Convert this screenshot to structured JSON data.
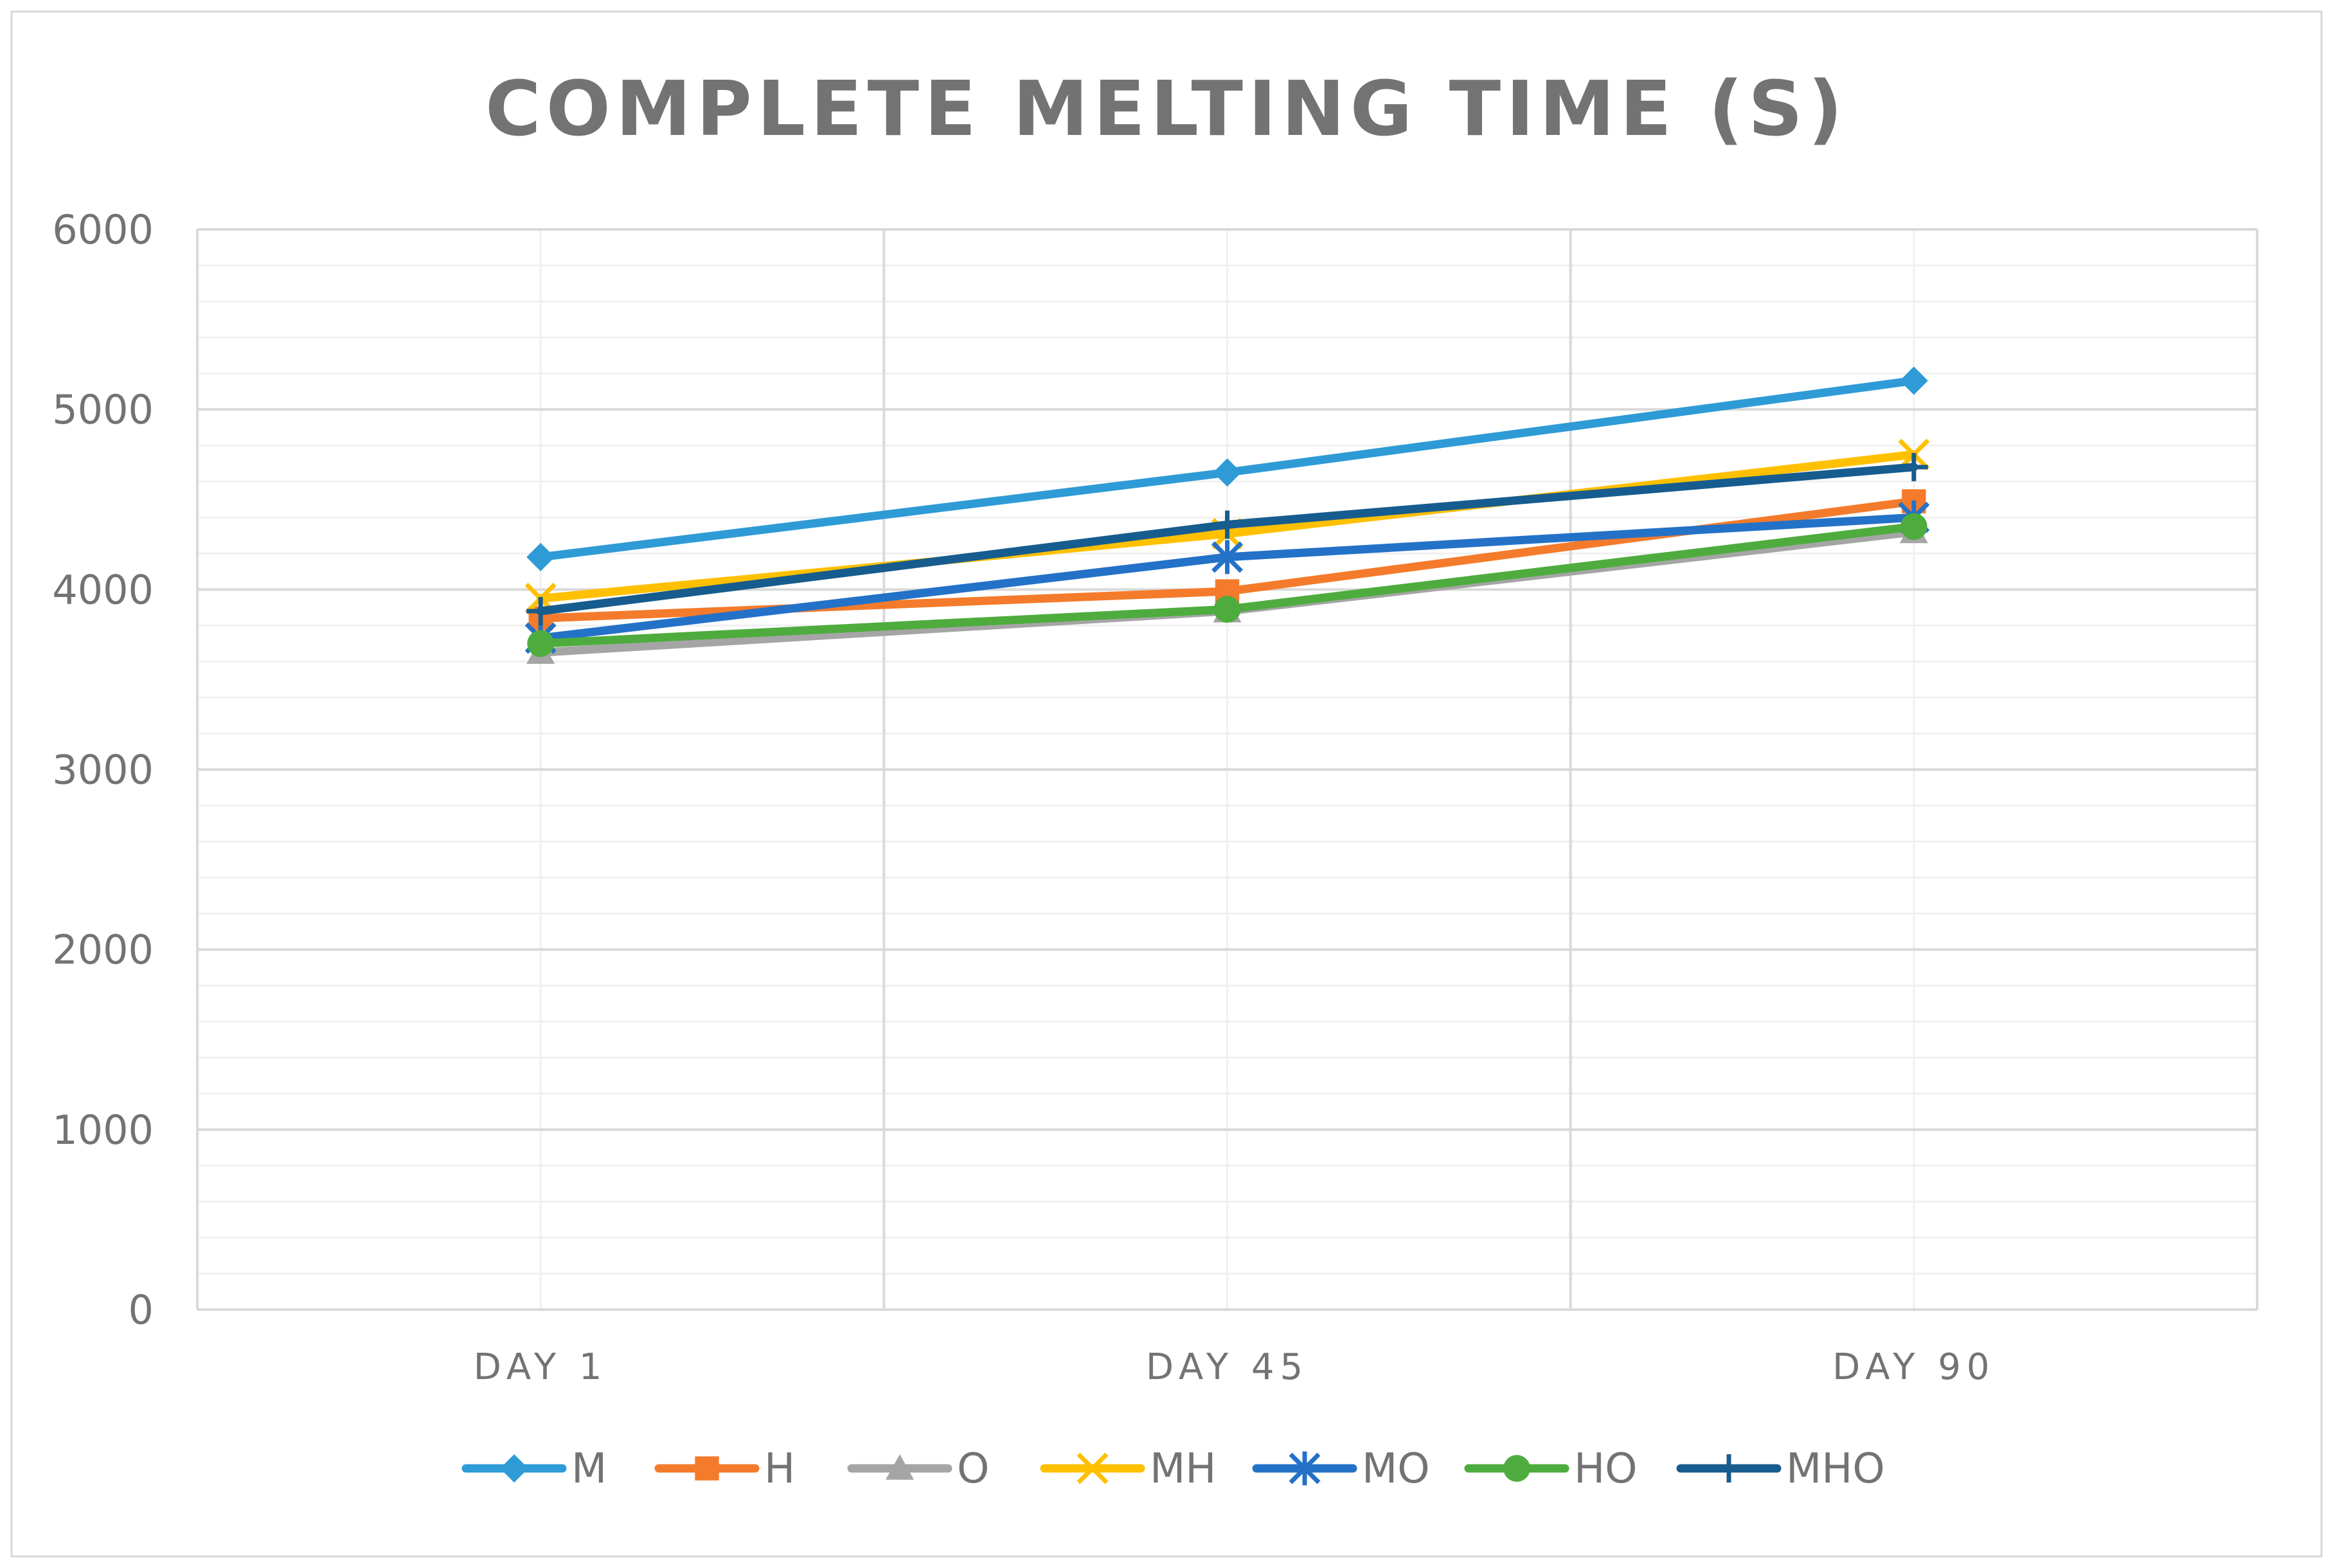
{
  "chart_data": {
    "type": "line",
    "title": "COMPLETE MELTING TIME (S)",
    "categories": [
      "DAY 1",
      "DAY 45",
      "DAY 90"
    ],
    "ylim": [
      0,
      6000
    ],
    "yticks": [
      0,
      1000,
      2000,
      3000,
      4000,
      5000,
      6000
    ],
    "grid": true,
    "legend_position": "bottom",
    "series": [
      {
        "name": "M",
        "values": [
          4180,
          4650,
          5160
        ],
        "color": "#2E9BD6",
        "marker": "diamond"
      },
      {
        "name": "H",
        "values": [
          3840,
          3990,
          4490
        ],
        "color": "#F47B2B",
        "marker": "square"
      },
      {
        "name": "O",
        "values": [
          3650,
          3880,
          4320
        ],
        "color": "#A5A5A5",
        "marker": "triangle"
      },
      {
        "name": "MH",
        "values": [
          3950,
          4310,
          4750
        ],
        "color": "#FFC000",
        "marker": "x"
      },
      {
        "name": "MO",
        "values": [
          3730,
          4180,
          4400
        ],
        "color": "#2471C8",
        "marker": "asterisk"
      },
      {
        "name": "HO",
        "values": [
          3700,
          3890,
          4350
        ],
        "color": "#4EAC3E",
        "marker": "circle"
      },
      {
        "name": "MHO",
        "values": [
          3880,
          4360,
          4680
        ],
        "color": "#175C8E",
        "marker": "plus"
      }
    ]
  }
}
